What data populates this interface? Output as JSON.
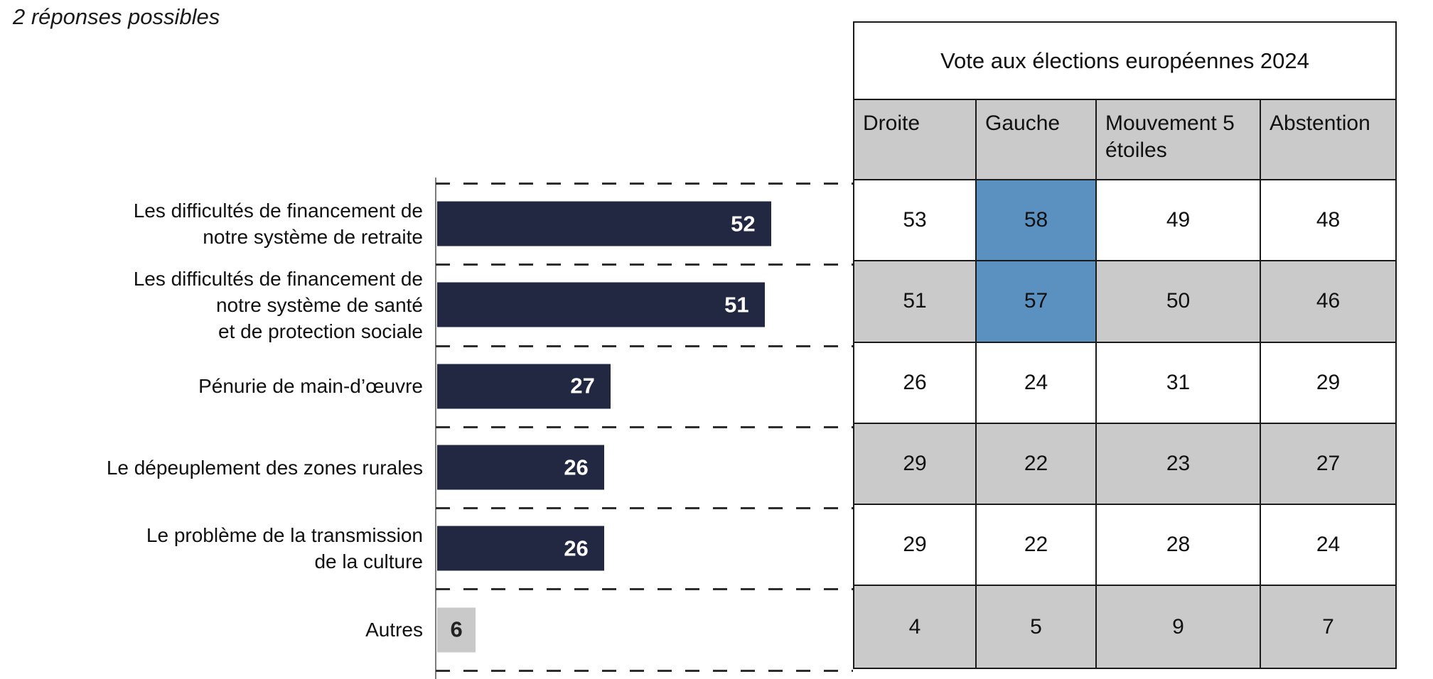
{
  "note": "2 réponses possibles",
  "chart_data": {
    "type": "bar",
    "orientation": "horizontal",
    "categories": [
      "Les difficultés de financement de\nnotre système de retraite",
      "Les difficultés de financement de\nnotre système de santé\net de protection sociale",
      "Pénurie de main-d’œuvre",
      "Le dépeuplement des zones rurales",
      "Le problème de la transmission\nde la culture",
      "Autres"
    ],
    "values": [
      52,
      51,
      27,
      26,
      26,
      6
    ],
    "value_labels": [
      "52",
      "51",
      "27",
      "26",
      "26",
      "6"
    ],
    "xlim": [
      0,
      65
    ],
    "bar_styles": [
      "primary",
      "primary",
      "primary",
      "primary",
      "primary",
      "muted"
    ],
    "colors": {
      "primary": "#222742",
      "muted": "#c9c9c9"
    },
    "grid": "dashed row separator lines aligned with table rows",
    "legend": "none",
    "xlabel": "",
    "ylabel": ""
  },
  "table": {
    "title": "Vote aux élections européennes 2024",
    "columns": [
      "Droite",
      "Gauche",
      "Mouvement 5 étoiles",
      "Abstention"
    ],
    "rows": [
      [
        "53",
        "58",
        "49",
        "48"
      ],
      [
        "51",
        "57",
        "50",
        "46"
      ],
      [
        "26",
        "24",
        "31",
        "29"
      ],
      [
        "29",
        "22",
        "23",
        "27"
      ],
      [
        "29",
        "22",
        "28",
        "24"
      ],
      [
        "4",
        "5",
        "9",
        "7"
      ]
    ],
    "highlight_cells": [
      {
        "row": 0,
        "col": 1
      },
      {
        "row": 1,
        "col": 1
      }
    ],
    "colors": {
      "highlight": "#5b91c1",
      "zebra": "#cacaca",
      "header_bg": "#cacaca",
      "border": "#1a1a1a"
    }
  }
}
